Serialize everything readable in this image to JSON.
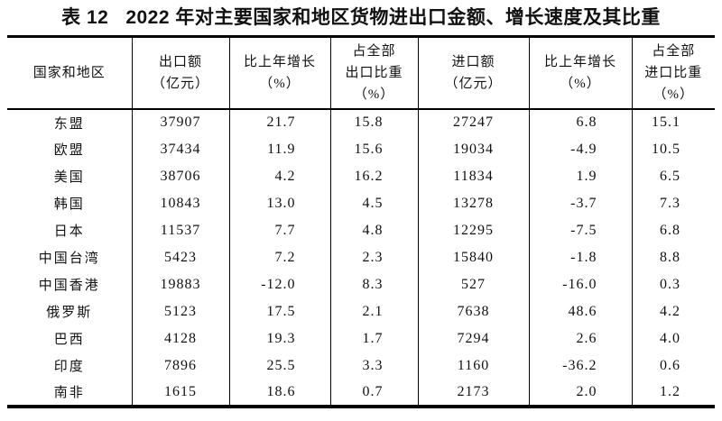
{
  "colors": {
    "background": "#ffffff",
    "text": "#111111",
    "border": "#000000"
  },
  "title": "表 12   2022 年对主要国家和地区货物进出口金额、增长速度及其比重",
  "table": {
    "columns": [
      {
        "key": "region",
        "label": "国家和地区",
        "align": "center"
      },
      {
        "key": "export_value",
        "label": "出口额\n（亿元）",
        "align": "center"
      },
      {
        "key": "export_growth",
        "label": "比上年增长\n（%）",
        "align": "right"
      },
      {
        "key": "export_share",
        "label": "占全部\n出口比重\n（%）",
        "align": "right"
      },
      {
        "key": "import_value",
        "label": "进口额\n（亿元）",
        "align": "center"
      },
      {
        "key": "import_growth",
        "label": "比上年增长\n（%）",
        "align": "right"
      },
      {
        "key": "import_share",
        "label": "占全部\n进口比重\n（%）",
        "align": "right"
      }
    ],
    "rows": [
      [
        "东盟",
        "37907",
        "21.7",
        "15.8",
        "27247",
        "6.8",
        "15.1"
      ],
      [
        "欧盟",
        "37434",
        "11.9",
        "15.6",
        "19034",
        "-4.9",
        "10.5"
      ],
      [
        "美国",
        "38706",
        "4.2",
        "16.2",
        "11834",
        "1.9",
        "6.5"
      ],
      [
        "韩国",
        "10843",
        "13.0",
        "4.5",
        "13278",
        "-3.7",
        "7.3"
      ],
      [
        "日本",
        "11537",
        "7.7",
        "4.8",
        "12295",
        "-7.5",
        "6.8"
      ],
      [
        "中国台湾",
        "5423",
        "7.2",
        "2.3",
        "15840",
        "-1.8",
        "8.8"
      ],
      [
        "中国香港",
        "19883",
        "-12.0",
        "8.3",
        "527",
        "-16.0",
        "0.3"
      ],
      [
        "俄罗斯",
        "5123",
        "17.5",
        "2.1",
        "7638",
        "48.6",
        "4.2"
      ],
      [
        "巴西",
        "4128",
        "19.3",
        "1.7",
        "7294",
        "2.6",
        "4.0"
      ],
      [
        "印度",
        "7896",
        "25.5",
        "3.3",
        "1160",
        "-36.2",
        "0.6"
      ],
      [
        "南非",
        "1615",
        "18.6",
        "0.7",
        "2173",
        "2.0",
        "1.2"
      ]
    ]
  }
}
